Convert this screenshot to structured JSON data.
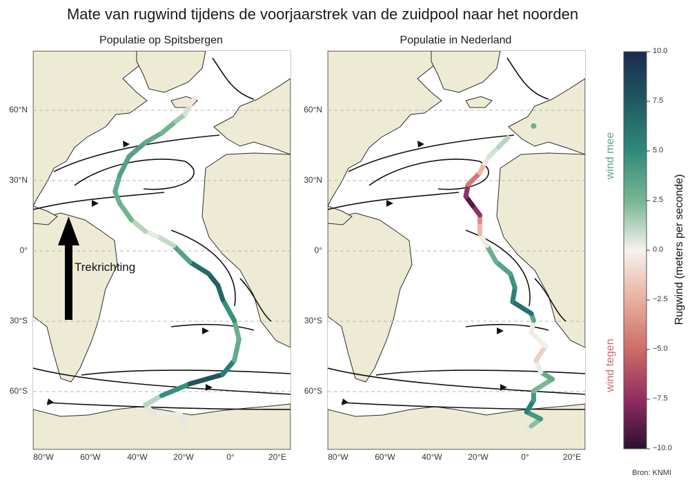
{
  "title": "Mate van rugwind tijdens de voorjaarstrek van de zuidpool naar het noorden",
  "panels": [
    {
      "subtitle": "Populatie op Spitsbergen"
    },
    {
      "subtitle": "Populatie in Nederland"
    }
  ],
  "axes": {
    "lat_labels": [
      "60°N",
      "30°N",
      "0°",
      "30°S",
      "60°S"
    ],
    "lon_labels": [
      "80°W",
      "60°W",
      "40°W",
      "20°W",
      "0°",
      "20°E"
    ]
  },
  "annotation": {
    "arrow_label": "Trekrichting"
  },
  "colorbar": {
    "title": "Rugwind (meters per seconde)",
    "ticks": [
      "10.0",
      "7.5",
      "5.0",
      "2.5",
      "0.0",
      "−2.5",
      "−5.0",
      "−7.5",
      "−10.0"
    ],
    "range": [
      -10,
      10
    ],
    "label_positive": "wind mee",
    "label_negative": "wind tegen",
    "color_positive": "#5fa98a",
    "color_negative": "#cc6b6b"
  },
  "source": "Bron: KNMI",
  "colors": {
    "land": "#eeebd4",
    "sea": "#ffffff",
    "gridline": "#b5b5b5",
    "stream": "#111111"
  },
  "chart_data": {
    "type": "map",
    "projection": "lat-lon",
    "lon_range": [
      -85,
      25
    ],
    "lat_range": [
      -85,
      85
    ],
    "tracks": [
      {
        "panel": 0,
        "points": [
          {
            "lon": -20,
            "lat": -75,
            "wind": 0.5
          },
          {
            "lon": -22,
            "lat": -70,
            "wind": 0.3
          },
          {
            "lon": -33,
            "lat": -70,
            "wind": 0.2
          },
          {
            "lon": -37,
            "lat": -66,
            "wind": 0.6
          },
          {
            "lon": -30,
            "lat": -62,
            "wind": 2.0
          },
          {
            "lon": -18,
            "lat": -57,
            "wind": 7.5
          },
          {
            "lon": -4,
            "lat": -53,
            "wind": 8.0
          },
          {
            "lon": 1,
            "lat": -47,
            "wind": 3.5
          },
          {
            "lon": 3,
            "lat": -38,
            "wind": 3.0
          },
          {
            "lon": 1,
            "lat": -30,
            "wind": 3.0
          },
          {
            "lon": -4,
            "lat": -21,
            "wind": 6.5
          },
          {
            "lon": -6,
            "lat": -15,
            "wind": 7.0
          },
          {
            "lon": -10,
            "lat": -10,
            "wind": 7.0
          },
          {
            "lon": -18,
            "lat": -5,
            "wind": 6.0
          },
          {
            "lon": -25,
            "lat": 2,
            "wind": 1.5
          },
          {
            "lon": -32,
            "lat": 6,
            "wind": 0.5
          },
          {
            "lon": -37,
            "lat": 8,
            "wind": 0.2
          },
          {
            "lon": -43,
            "lat": 13,
            "wind": 2.5
          },
          {
            "lon": -48,
            "lat": 20,
            "wind": 3.0
          },
          {
            "lon": -50,
            "lat": 25,
            "wind": 3.0
          },
          {
            "lon": -48,
            "lat": 32,
            "wind": 3.5
          },
          {
            "lon": -44,
            "lat": 40,
            "wind": 4.0
          },
          {
            "lon": -37,
            "lat": 46,
            "wind": 3.5
          },
          {
            "lon": -30,
            "lat": 50,
            "wind": 3.0
          },
          {
            "lon": -24,
            "lat": 55,
            "wind": 2.5
          },
          {
            "lon": -20,
            "lat": 58,
            "wind": 1.0
          },
          {
            "lon": -18,
            "lat": 62,
            "wind": 0.5
          },
          {
            "lon": -16,
            "lat": 65,
            "wind": -1.5
          }
        ]
      },
      {
        "panel": 1,
        "points": [
          {
            "lon": 0,
            "lat": -77,
            "wind": 0.5
          },
          {
            "lon": 2,
            "lat": -75,
            "wind": 0.3
          },
          {
            "lon": 6,
            "lat": -72,
            "wind": 4.0
          },
          {
            "lon": 0,
            "lat": -69,
            "wind": 4.5
          },
          {
            "lon": 3,
            "lat": -64,
            "wind": 6.5
          },
          {
            "lon": 3,
            "lat": -60,
            "wind": 2.0
          },
          {
            "lon": 11,
            "lat": -55,
            "wind": 3.0
          },
          {
            "lon": 6,
            "lat": -52,
            "wind": 3.5
          },
          {
            "lon": 4,
            "lat": -47,
            "wind": -3.0
          },
          {
            "lon": 8,
            "lat": -41,
            "wind": 0.3
          },
          {
            "lon": 2,
            "lat": -35,
            "wind": 0.0
          },
          {
            "lon": 3,
            "lat": -30,
            "wind": 0.5
          },
          {
            "lon": 2,
            "lat": -27,
            "wind": 6.5
          },
          {
            "lon": -6,
            "lat": -22,
            "wind": 6.0
          },
          {
            "lon": -5,
            "lat": -16,
            "wind": 5.0
          },
          {
            "lon": -7,
            "lat": -10,
            "wind": 4.0
          },
          {
            "lon": -13,
            "lat": -5,
            "wind": 3.5
          },
          {
            "lon": -17,
            "lat": 2,
            "wind": 2.5
          },
          {
            "lon": -20,
            "lat": 7,
            "wind": -2.0
          },
          {
            "lon": -20,
            "lat": 12,
            "wind": -2.5
          },
          {
            "lon": -20,
            "lat": 15,
            "wind": -5.0
          },
          {
            "lon": -23,
            "lat": 19,
            "wind": -9.5
          },
          {
            "lon": -26,
            "lat": 23,
            "wind": -8.5
          },
          {
            "lon": -25,
            "lat": 28,
            "wind": -6.0
          },
          {
            "lon": -20,
            "lat": 33,
            "wind": -3.0
          },
          {
            "lon": -18,
            "lat": 37,
            "wind": -1.5
          },
          {
            "lon": -16,
            "lat": 40,
            "wind": 0.5
          },
          {
            "lon": -12,
            "lat": 44,
            "wind": 1.0
          },
          {
            "lon": -8,
            "lat": 48,
            "wind": 1.5
          }
        ],
        "end_marker": {
          "lon": 3,
          "lat": 53,
          "wind": 3.0
        }
      }
    ],
    "arrow": {
      "panel": 0,
      "lon": -70,
      "lat_from": -30,
      "lat_to": 12
    }
  }
}
